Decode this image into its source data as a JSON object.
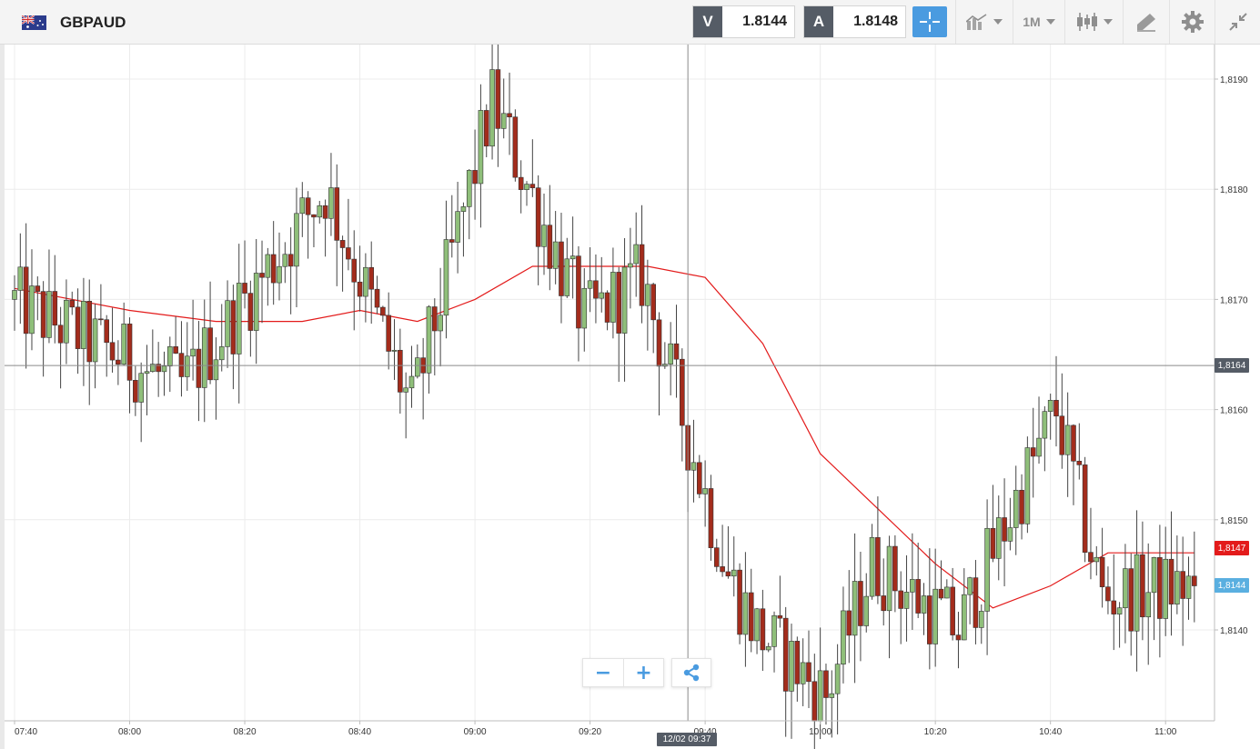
{
  "header": {
    "flag_icon": "gb-au-flag-icon",
    "symbol": "GBPAUD"
  },
  "quotes": {
    "sell_letter": "V",
    "sell_price": "1.8144",
    "buy_letter": "A",
    "buy_price": "1.8148"
  },
  "toolbar": {
    "crosshair_icon": "crosshair-icon",
    "indicators_icon": "indicators-icon",
    "timeframe_label": "1M",
    "chart_type_icon": "candlestick-icon",
    "drawing_icon": "drawing-tools-icon",
    "settings_icon": "gear-icon",
    "fullscreen_icon": "collapse-icon"
  },
  "colors": {
    "bullish": "#8fbf7a",
    "bearish": "#a32c1c",
    "moving_average": "#e31b1b",
    "crosshair_tag": "#555c66",
    "last_price_tag": "#5aafe0",
    "accent": "#4a9be0"
  },
  "tags": {
    "crosshair_price": "1,8164",
    "moving_average_price": "1,8147",
    "last_price": "1,8144",
    "crosshair_time": "12/02 09:37"
  },
  "controls": {
    "zoom_out": "−",
    "zoom_in": "+",
    "share_icon": "share-icon"
  },
  "chart_data": {
    "type": "candlestick",
    "symbol": "GBPAUD",
    "timeframe": "1M",
    "ylim": [
      1.8132,
      1.8194
    ],
    "y_ticks": [
      "1,8190",
      "1,8180",
      "1,8170",
      "1,8160",
      "1,8150",
      "1,8140"
    ],
    "x_ticks": [
      "07:40",
      "08:00",
      "08:20",
      "08:40",
      "09:00",
      "09:20",
      "09:40",
      "10:00",
      "10:20",
      "10:40",
      "11:00"
    ],
    "crosshair": {
      "time": "12/02 09:37",
      "price": 1.8164
    },
    "series": [
      {
        "name": "price",
        "type": "candlestick",
        "description": "OHLC 1-minute candles from 07:40 to 11:00; high 1.8190 near 09:04, low 1.8133 near 10:02, last 1.8144",
        "key_points": [
          {
            "time": "07:40",
            "price": 1.817
          },
          {
            "time": "08:10",
            "price": 1.8162
          },
          {
            "time": "08:35",
            "price": 1.818
          },
          {
            "time": "08:50",
            "price": 1.816
          },
          {
            "time": "09:04",
            "price": 1.8188
          },
          {
            "time": "09:20",
            "price": 1.8168
          },
          {
            "time": "09:30",
            "price": 1.8172
          },
          {
            "time": "09:45",
            "price": 1.8145
          },
          {
            "time": "09:50",
            "price": 1.814
          },
          {
            "time": "10:02",
            "price": 1.8134
          },
          {
            "time": "10:10",
            "price": 1.8146
          },
          {
            "time": "10:25",
            "price": 1.814
          },
          {
            "time": "10:42",
            "price": 1.816
          },
          {
            "time": "10:50",
            "price": 1.8143
          },
          {
            "time": "11:05",
            "price": 1.8144
          }
        ]
      },
      {
        "name": "moving average",
        "type": "line",
        "points": [
          [
            "07:40",
            1.8171
          ],
          [
            "08:00",
            1.8169
          ],
          [
            "08:15",
            1.8168
          ],
          [
            "08:30",
            1.8168
          ],
          [
            "08:40",
            1.8169
          ],
          [
            "08:50",
            1.8168
          ],
          [
            "09:00",
            1.817
          ],
          [
            "09:10",
            1.8173
          ],
          [
            "09:20",
            1.8173
          ],
          [
            "09:30",
            1.8173
          ],
          [
            "09:40",
            1.8172
          ],
          [
            "09:50",
            1.8166
          ],
          [
            "10:00",
            1.8156
          ],
          [
            "10:10",
            1.8151
          ],
          [
            "10:20",
            1.8146
          ],
          [
            "10:30",
            1.8142
          ],
          [
            "10:40",
            1.8144
          ],
          [
            "10:50",
            1.8147
          ],
          [
            "11:00",
            1.8147
          ],
          [
            "11:05",
            1.8147
          ]
        ]
      }
    ]
  }
}
